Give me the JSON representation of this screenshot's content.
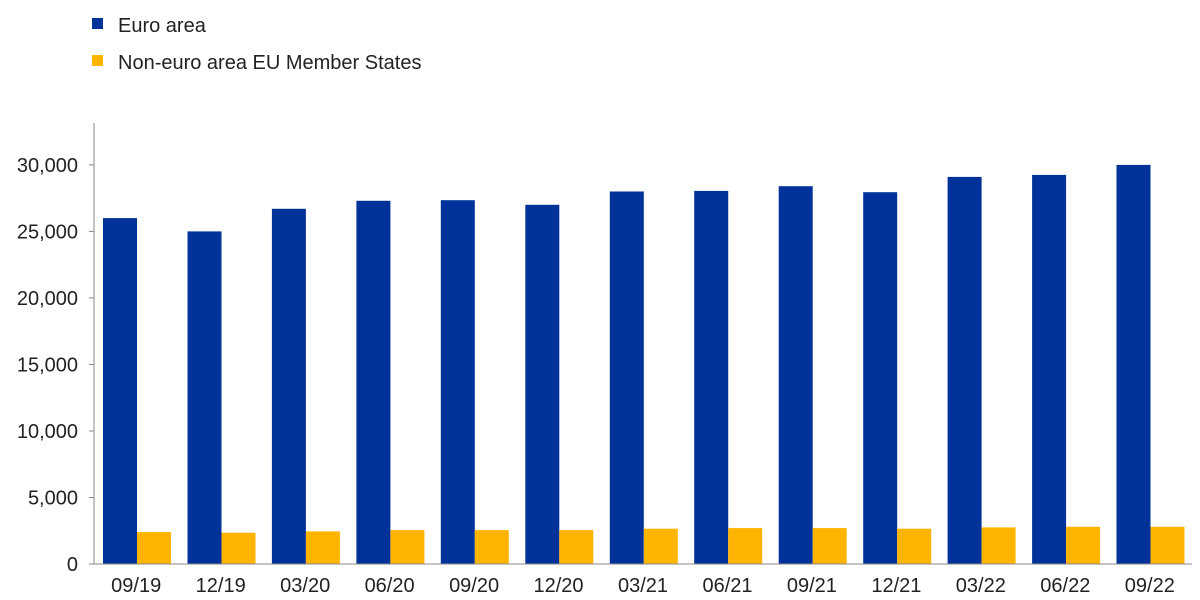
{
  "chart_data": {
    "type": "bar",
    "title": "",
    "xlabel": "",
    "ylabel": "",
    "categories": [
      "09/19",
      "12/19",
      "03/20",
      "06/20",
      "09/20",
      "12/20",
      "03/21",
      "06/21",
      "09/21",
      "12/21",
      "03/22",
      "06/22",
      "09/22"
    ],
    "series": [
      {
        "name": "Euro area",
        "color": "#003299",
        "values": [
          26000,
          25000,
          26700,
          27300,
          27350,
          27000,
          28000,
          28050,
          28400,
          27950,
          29100,
          29250,
          30000
        ]
      },
      {
        "name": "Non-euro area EU Member States",
        "color": "#FFB400",
        "values": [
          2400,
          2350,
          2450,
          2550,
          2550,
          2550,
          2650,
          2700,
          2700,
          2650,
          2750,
          2800,
          2800
        ]
      }
    ],
    "ylim": [
      0,
      33000
    ],
    "yticks": [
      0,
      5000,
      10000,
      15000,
      20000,
      25000,
      30000
    ],
    "ytick_labels": [
      "0",
      "5,000",
      "10,000",
      "15,000",
      "20,000",
      "25,000",
      "30,000"
    ],
    "grid": false,
    "legend_position": "top-left"
  }
}
